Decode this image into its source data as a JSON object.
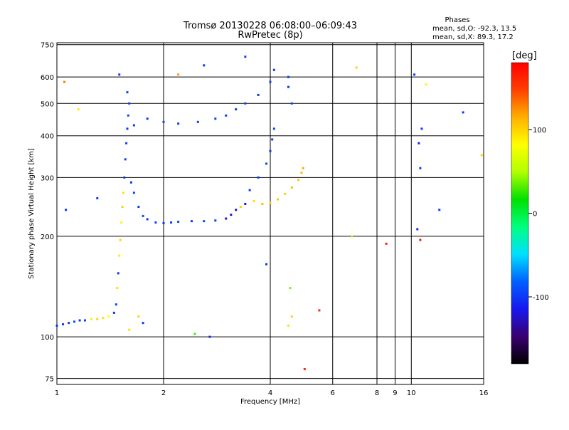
{
  "chart_data": {
    "type": "scatter",
    "title": "Tromsø 20130228 06:08:00–06:09:43",
    "subtitle": "RwPretec (8p)",
    "xlabel": "Frequency [MHz]",
    "ylabel": "Stationary phase Virtual Height [km]",
    "x_scale": "log",
    "y_scale": "log",
    "xlim": [
      1,
      16
    ],
    "ylim": [
      72,
      760
    ],
    "x_ticks": [
      1,
      2,
      4,
      6,
      8,
      9,
      10,
      16
    ],
    "x_tick_labels": [
      "1",
      "2",
      "4",
      "6",
      "8",
      "9",
      "10",
      "16"
    ],
    "y_ticks": [
      75,
      100,
      200,
      300,
      400,
      500,
      600,
      750
    ],
    "y_tick_labels": [
      "75",
      "100",
      "200",
      "300",
      "400",
      "500",
      "600",
      "750"
    ],
    "grid": true,
    "stats": {
      "heading": "Phases",
      "line1": "mean, sd,O: -92.3, 13.5",
      "line2": "mean, sd,X:  89.3, 17.2"
    },
    "colorbar": {
      "label": "[deg]",
      "range": [
        -180,
        180
      ],
      "ticks": [
        100,
        0,
        -100
      ],
      "tick_labels": [
        "100",
        "0",
        "-100"
      ],
      "colors": [
        "#000000",
        "#3a0070",
        "#1818f0",
        "#0060ff",
        "#00e0ff",
        "#00ff80",
        "#00e000",
        "#b0ff00",
        "#ffff00",
        "#ffb000",
        "#ff4000",
        "#ff0000"
      ]
    },
    "series": [
      {
        "values": [
          {
            "x": 1.0,
            "y": 108,
            "p": -100
          },
          {
            "x": 1.04,
            "y": 109,
            "p": -95
          },
          {
            "x": 1.08,
            "y": 110,
            "p": -100
          },
          {
            "x": 1.12,
            "y": 111,
            "p": -90
          },
          {
            "x": 1.16,
            "y": 112,
            "p": -105
          },
          {
            "x": 1.2,
            "y": 112,
            "p": -95
          },
          {
            "x": 1.25,
            "y": 113,
            "p": 90
          },
          {
            "x": 1.3,
            "y": 113,
            "p": 100
          },
          {
            "x": 1.35,
            "y": 114,
            "p": 95
          },
          {
            "x": 1.4,
            "y": 115,
            "p": 80
          },
          {
            "x": 1.45,
            "y": 118,
            "p": -100
          },
          {
            "x": 1.47,
            "y": 125,
            "p": -90
          },
          {
            "x": 1.48,
            "y": 140,
            "p": 95
          },
          {
            "x": 1.49,
            "y": 155,
            "p": -100
          },
          {
            "x": 1.5,
            "y": 175,
            "p": 90
          },
          {
            "x": 1.51,
            "y": 195,
            "p": 100
          },
          {
            "x": 1.52,
            "y": 220,
            "p": 85
          },
          {
            "x": 1.53,
            "y": 245,
            "p": 100
          },
          {
            "x": 1.54,
            "y": 270,
            "p": 95
          },
          {
            "x": 1.55,
            "y": 300,
            "p": -100
          },
          {
            "x": 1.56,
            "y": 340,
            "p": -95
          },
          {
            "x": 1.57,
            "y": 380,
            "p": -100
          },
          {
            "x": 1.58,
            "y": 420,
            "p": -100
          },
          {
            "x": 1.59,
            "y": 460,
            "p": -90
          },
          {
            "x": 1.6,
            "y": 500,
            "p": -100
          },
          {
            "x": 1.58,
            "y": 540,
            "p": -95
          },
          {
            "x": 1.62,
            "y": 290,
            "p": -100
          },
          {
            "x": 1.65,
            "y": 270,
            "p": -95
          },
          {
            "x": 1.7,
            "y": 245,
            "p": -100
          },
          {
            "x": 1.75,
            "y": 230,
            "p": -90
          },
          {
            "x": 1.8,
            "y": 225,
            "p": -100
          },
          {
            "x": 1.9,
            "y": 220,
            "p": -95
          },
          {
            "x": 2.0,
            "y": 219,
            "p": -100
          },
          {
            "x": 2.1,
            "y": 220,
            "p": -100
          },
          {
            "x": 2.2,
            "y": 221,
            "p": -95
          },
          {
            "x": 2.4,
            "y": 222,
            "p": -100
          },
          {
            "x": 2.6,
            "y": 222,
            "p": -90
          },
          {
            "x": 2.8,
            "y": 223,
            "p": -100
          },
          {
            "x": 3.0,
            "y": 226,
            "p": -120
          },
          {
            "x": 3.1,
            "y": 232,
            "p": -125
          },
          {
            "x": 3.2,
            "y": 240,
            "p": -120
          },
          {
            "x": 3.3,
            "y": 245,
            "p": 100
          },
          {
            "x": 3.4,
            "y": 250,
            "p": -120
          },
          {
            "x": 3.6,
            "y": 255,
            "p": 95
          },
          {
            "x": 3.8,
            "y": 250,
            "p": 110
          },
          {
            "x": 4.0,
            "y": 252,
            "p": 100
          },
          {
            "x": 4.2,
            "y": 258,
            "p": 105
          },
          {
            "x": 4.4,
            "y": 268,
            "p": 100
          },
          {
            "x": 4.6,
            "y": 280,
            "p": 110
          },
          {
            "x": 4.8,
            "y": 295,
            "p": 105
          },
          {
            "x": 4.9,
            "y": 310,
            "p": 110
          },
          {
            "x": 4.95,
            "y": 320,
            "p": 115
          },
          {
            "x": 3.5,
            "y": 275,
            "p": -100
          },
          {
            "x": 3.7,
            "y": 300,
            "p": -100
          },
          {
            "x": 3.9,
            "y": 330,
            "p": -95
          },
          {
            "x": 4.0,
            "y": 360,
            "p": -100
          },
          {
            "x": 4.05,
            "y": 390,
            "p": -100
          },
          {
            "x": 4.1,
            "y": 420,
            "p": -95
          },
          {
            "x": 1.65,
            "y": 430,
            "p": -100
          },
          {
            "x": 1.8,
            "y": 450,
            "p": -100
          },
          {
            "x": 2.0,
            "y": 440,
            "p": -95
          },
          {
            "x": 2.2,
            "y": 435,
            "p": -100
          },
          {
            "x": 2.5,
            "y": 440,
            "p": -100
          },
          {
            "x": 2.8,
            "y": 450,
            "p": -95
          },
          {
            "x": 3.0,
            "y": 460,
            "p": -100
          },
          {
            "x": 3.2,
            "y": 480,
            "p": -100
          },
          {
            "x": 3.4,
            "y": 500,
            "p": -95
          },
          {
            "x": 3.7,
            "y": 530,
            "p": -100
          },
          {
            "x": 4.0,
            "y": 580,
            "p": -95
          },
          {
            "x": 4.1,
            "y": 630,
            "p": -100
          },
          {
            "x": 4.5,
            "y": 560,
            "p": -100
          },
          {
            "x": 4.6,
            "y": 500,
            "p": -95
          },
          {
            "x": 4.5,
            "y": 600,
            "p": -100
          },
          {
            "x": 1.6,
            "y": 105,
            "p": 95
          },
          {
            "x": 1.7,
            "y": 115,
            "p": 100
          },
          {
            "x": 1.75,
            "y": 110,
            "p": -100
          },
          {
            "x": 2.7,
            "y": 100,
            "p": -110
          },
          {
            "x": 3.9,
            "y": 165,
            "p": -100
          },
          {
            "x": 4.6,
            "y": 115,
            "p": 100
          },
          {
            "x": 5.0,
            "y": 80,
            "p": 160
          },
          {
            "x": 10.5,
            "y": 380,
            "p": -110
          },
          {
            "x": 10.7,
            "y": 420,
            "p": -100
          },
          {
            "x": 10.6,
            "y": 320,
            "p": -100
          },
          {
            "x": 10.4,
            "y": 210,
            "p": -110
          },
          {
            "x": 10.6,
            "y": 195,
            "p": 170
          },
          {
            "x": 14.0,
            "y": 470,
            "p": -100
          },
          {
            "x": 15.8,
            "y": 350,
            "p": 100
          },
          {
            "x": 10.2,
            "y": 610,
            "p": -100
          },
          {
            "x": 11.0,
            "y": 570,
            "p": 85
          },
          {
            "x": 7.0,
            "y": 640,
            "p": 100
          },
          {
            "x": 1.05,
            "y": 580,
            "p": 130
          },
          {
            "x": 1.5,
            "y": 610,
            "p": -100
          },
          {
            "x": 2.2,
            "y": 610,
            "p": 120
          },
          {
            "x": 2.6,
            "y": 650,
            "p": -100
          },
          {
            "x": 3.4,
            "y": 690,
            "p": -100
          },
          {
            "x": 1.15,
            "y": 480,
            "p": 90
          },
          {
            "x": 6.8,
            "y": 200,
            "p": 50
          },
          {
            "x": 12.0,
            "y": 240,
            "p": -100
          },
          {
            "x": 8.5,
            "y": 190,
            "p": 160
          },
          {
            "x": 1.3,
            "y": 260,
            "p": -100
          },
          {
            "x": 1.06,
            "y": 240,
            "p": -100
          },
          {
            "x": 5.5,
            "y": 120,
            "p": 160
          },
          {
            "x": 4.55,
            "y": 140,
            "p": 40
          },
          {
            "x": 4.5,
            "y": 108,
            "p": 60
          },
          {
            "x": 2.45,
            "y": 102,
            "p": 30
          }
        ]
      }
    ]
  }
}
